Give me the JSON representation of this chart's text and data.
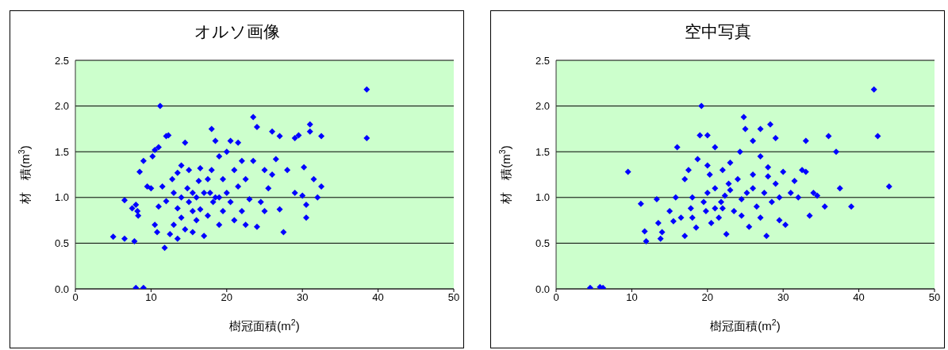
{
  "chart_data": [
    {
      "type": "scatter",
      "title": "オルソ画像",
      "xlabel": "樹冠面積(m$^{2}$)",
      "ylabel": "材　積(m$^{3}$)",
      "xlim": [
        0,
        50
      ],
      "xticks": [
        0,
        10,
        20,
        30,
        40,
        50
      ],
      "ylim": [
        0,
        2.5
      ],
      "yticks": [
        {
          "value": 0,
          "label": "0.0"
        },
        {
          "value": 0.5,
          "label": "0.5"
        },
        {
          "value": 1,
          "label": "1.0"
        },
        {
          "value": 1.5,
          "label": "1.5"
        },
        {
          "value": 2,
          "label": "2.0"
        },
        {
          "value": 2.5,
          "label": "2.5"
        }
      ],
      "grid": "y",
      "marker": "diamond",
      "series": [
        {
          "color": "#0000ff",
          "x": [
            5,
            6.5,
            6.5,
            7.5,
            7.8,
            8,
            8.2,
            8.3,
            8,
            9,
            8.5,
            9,
            9.5,
            10,
            10.2,
            10.5,
            11,
            10.5,
            10.8,
            11,
            11.2,
            11.5,
            11.8,
            12,
            12.3,
            12,
            12.5,
            12.8,
            13,
            13,
            13.5,
            13.5,
            14,
            14,
            14.5,
            14.5,
            14.8,
            15,
            15,
            15.5,
            15.5,
            16,
            16,
            16.3,
            16.5,
            17,
            17,
            17.5,
            17.5,
            18,
            18,
            18.2,
            18.5,
            18.5,
            19,
            19,
            19.5,
            19.5,
            20,
            20,
            20.5,
            20.5,
            21,
            21,
            21.5,
            22,
            22,
            22.5,
            23,
            23.5,
            23.5,
            24,
            24,
            24.5,
            25,
            25.5,
            26,
            26,
            26.5,
            27,
            27,
            27.5,
            28,
            29,
            29,
            29.5,
            30,
            30.2,
            30.5,
            30.5,
            31,
            31,
            31.5,
            32,
            32.5,
            32.5,
            38.5,
            38.5,
            14,
            13.5,
            15.5,
            16.5,
            17.8,
            19,
            21.5,
            22.5,
            25
          ],
          "values": [
            0.57,
            0.97,
            0.55,
            0.88,
            0.52,
            0.92,
            0.85,
            0.8,
            0.01,
            0.01,
            1.28,
            1.4,
            1.12,
            1.1,
            1.45,
            1.52,
            1.55,
            0.7,
            0.62,
            0.9,
            2.0,
            1.12,
            0.45,
            1.67,
            1.68,
            0.96,
            0.6,
            1.2,
            0.7,
            1.05,
            1.27,
            0.88,
            0.78,
            1.35,
            1.6,
            0.65,
            1.1,
            0.95,
            1.3,
            0.85,
            0.62,
            1.0,
            0.75,
            1.18,
            0.87,
            0.58,
            1.05,
            1.2,
            0.8,
            1.75,
            1.3,
            0.95,
            1.62,
            1.0,
            1.45,
            0.7,
            1.2,
            0.85,
            1.05,
            1.5,
            1.62,
            0.95,
            1.3,
            0.75,
            1.12,
            0.85,
            1.4,
            1.2,
            0.98,
            1.88,
            1.4,
            1.77,
            0.68,
            0.95,
            1.3,
            1.1,
            1.72,
            1.25,
            1.42,
            1.67,
            0.87,
            0.62,
            1.3,
            1.05,
            1.65,
            1.68,
            1.02,
            1.33,
            0.92,
            0.78,
            1.8,
            1.72,
            1.2,
            1.0,
            1.67,
            1.12,
            2.18,
            1.65,
            1.0,
            0.55,
            1.05,
            1.32,
            1.05,
            1.0,
            1.6,
            0.7,
            0.85
          ]
        }
      ]
    },
    {
      "type": "scatter",
      "title": "空中写真",
      "xlabel": "樹冠面積(m$^{2}$)",
      "ylabel": "材　積(m$^{3}$)",
      "xlim": [
        0,
        50
      ],
      "xticks": [
        0,
        10,
        20,
        30,
        40,
        50
      ],
      "ylim": [
        0,
        2.5
      ],
      "yticks": [
        {
          "value": 0,
          "label": "0.0"
        },
        {
          "value": 0.5,
          "label": "0.5"
        },
        {
          "value": 1,
          "label": "1.0"
        },
        {
          "value": 1.5,
          "label": "1.5"
        },
        {
          "value": 2,
          "label": "2.0"
        },
        {
          "value": 2.5,
          "label": "2.5"
        }
      ],
      "grid": "y",
      "marker": "diamond",
      "series": [
        {
          "color": "#0000ff",
          "x": [
            4.5,
            5.8,
            6.2,
            9.5,
            11.2,
            11.7,
            11.9,
            13.3,
            13.5,
            13.8,
            14,
            15,
            15.5,
            15.8,
            16,
            16.5,
            17,
            17,
            17.5,
            17.8,
            18,
            18.5,
            18.7,
            19,
            19.2,
            19.5,
            19.8,
            20,
            20,
            20.3,
            20.5,
            21,
            21,
            21.5,
            21.8,
            22,
            22.3,
            22.5,
            22.8,
            23,
            23.5,
            24,
            24.3,
            24.5,
            24.8,
            25,
            25.2,
            25.5,
            26,
            26,
            26.5,
            27,
            27,
            27.5,
            27.8,
            28,
            28.3,
            28.5,
            29,
            29,
            29.5,
            30,
            30.3,
            31,
            31.5,
            32,
            32.5,
            33,
            33,
            33.5,
            34,
            34.5,
            35.5,
            36,
            37,
            37.5,
            39,
            42,
            42.5,
            44,
            18,
            20,
            22,
            23,
            24.5,
            26,
            28,
            29.5,
            27,
            21
          ],
          "values": [
            0.01,
            0.02,
            0.01,
            1.28,
            0.93,
            0.63,
            0.52,
            0.98,
            0.72,
            0.55,
            0.62,
            0.85,
            0.74,
            1.0,
            1.55,
            0.78,
            1.2,
            0.58,
            1.3,
            0.88,
            1.0,
            0.67,
            1.42,
            1.68,
            2.0,
            0.95,
            0.85,
            1.05,
            1.68,
            1.25,
            0.72,
            1.1,
            1.55,
            0.78,
            0.95,
            1.3,
            1.02,
            0.6,
            1.15,
            1.38,
            0.85,
            1.2,
            1.5,
            0.98,
            1.88,
            1.75,
            1.05,
            0.68,
            1.25,
            1.62,
            0.9,
            1.45,
            1.75,
            1.05,
            0.58,
            1.33,
            1.8,
            0.95,
            1.15,
            1.65,
            1.0,
            1.28,
            0.7,
            1.05,
            1.18,
            1.0,
            1.3,
            1.62,
            1.28,
            0.8,
            1.05,
            1.02,
            0.9,
            1.67,
            1.5,
            1.1,
            0.9,
            2.18,
            1.67,
            1.12,
            0.78,
            1.35,
            0.88,
            1.08,
            0.8,
            1.1,
            1.23,
            0.75,
            0.78,
            0.88
          ]
        }
      ]
    }
  ]
}
